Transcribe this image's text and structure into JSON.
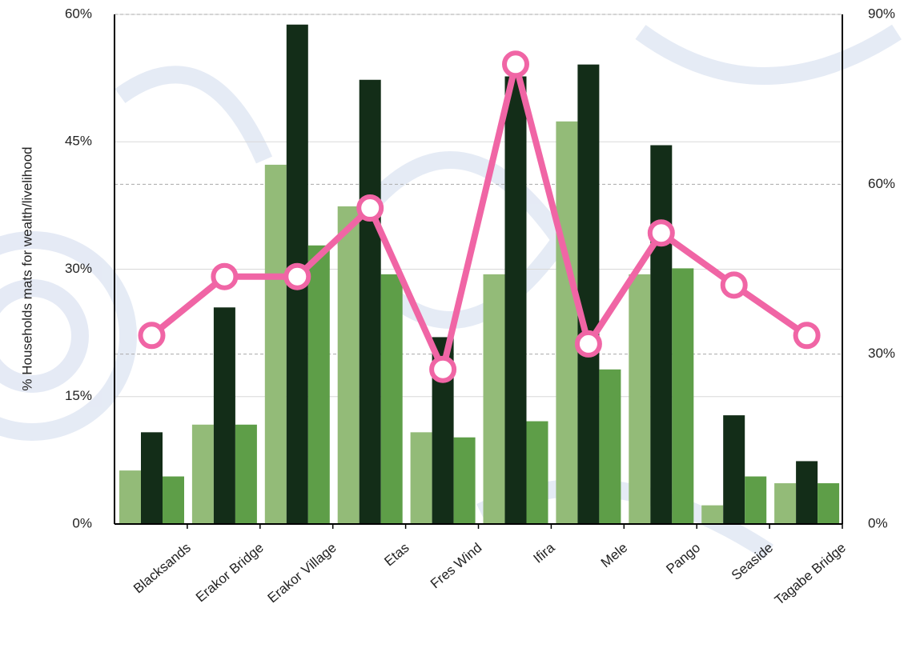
{
  "chart_data": {
    "type": "bar",
    "y_label": "% Households mats for wealth/livelihood",
    "categories": [
      "Blacksands",
      "Erakor Bridge",
      "Erakor Village",
      "Etas",
      "Fres Wind",
      "Ifira",
      "Mele",
      "Pango",
      "Seaside",
      "Tagabe Bridge"
    ],
    "series": [
      {
        "color": "#93bb78",
        "values": [
          6.3,
          11.7,
          42.3,
          37.4,
          10.8,
          29.4,
          47.4,
          29.4,
          2.2,
          4.8
        ]
      },
      {
        "color": "#132d18",
        "values": [
          10.8,
          25.5,
          58.8,
          52.3,
          22.0,
          52.7,
          54.1,
          44.6,
          12.8,
          7.4
        ]
      },
      {
        "color": "#5e9e48",
        "values": [
          5.6,
          11.7,
          32.8,
          29.4,
          10.2,
          12.1,
          18.2,
          30.1,
          5.6,
          4.8
        ]
      },
      {
        "type": "line",
        "axis": "y2",
        "color": "#f065a5",
        "values": [
          33.3,
          43.7,
          43.7,
          55.8,
          27.3,
          81.2,
          31.8,
          51.4,
          42.2,
          33.3
        ]
      }
    ],
    "ylim": [
      0,
      60
    ],
    "yticks": [
      {
        "value": 0,
        "label": "0%"
      },
      {
        "value": 15,
        "label": "15%"
      },
      {
        "value": 30,
        "label": "30%"
      },
      {
        "value": 45,
        "label": "45%"
      },
      {
        "value": 60,
        "label": "60%"
      }
    ],
    "y2lim": [
      0,
      90
    ],
    "y2ticks": [
      {
        "value": 0,
        "label": "0%"
      },
      {
        "value": 30,
        "label": "30%"
      },
      {
        "value": 60,
        "label": "60%"
      },
      {
        "value": 90,
        "label": "90%"
      }
    ],
    "grid": true
  }
}
